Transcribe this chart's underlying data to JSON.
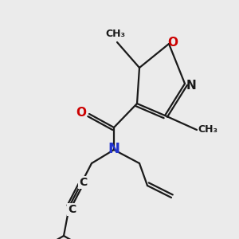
{
  "background_color": "#ebebeb",
  "bond_color": "#1a1a1a",
  "bond_width": 1.6,
  "figsize": [
    3.0,
    3.0
  ],
  "dpi": 100,
  "xlim": [
    0,
    300
  ],
  "ylim": [
    0,
    300
  ]
}
